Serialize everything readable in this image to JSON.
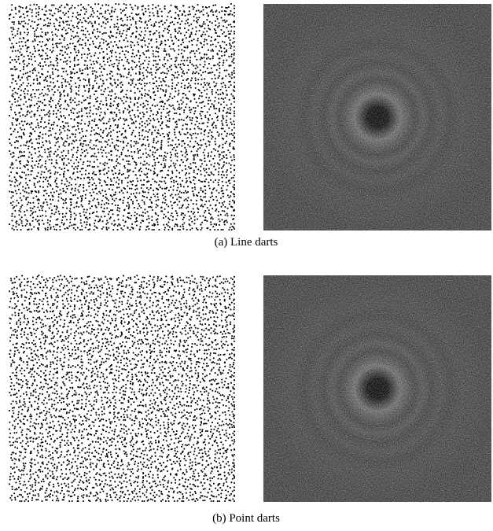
{
  "figures": [
    {
      "caption": "(a) Line darts"
    },
    {
      "caption": "(b) Point darts"
    }
  ]
}
